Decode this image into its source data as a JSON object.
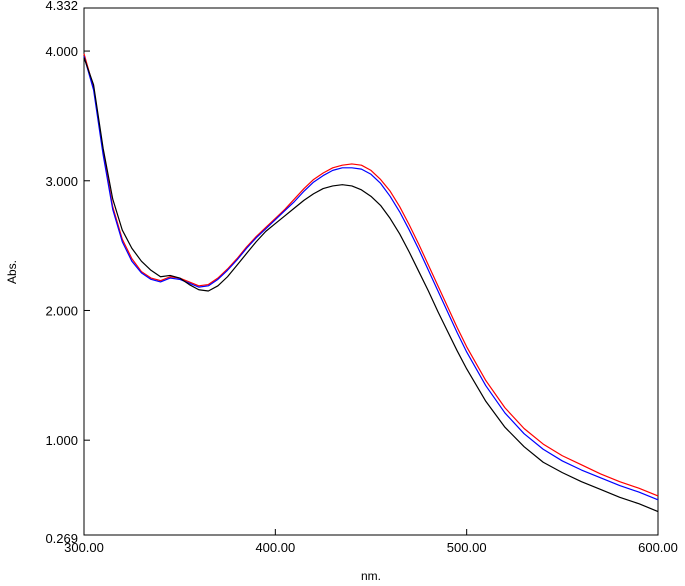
{
  "chart_data": {
    "type": "line",
    "title": "",
    "xlabel": "nm.",
    "ylabel": "Abs.",
    "xlim": [
      300.0,
      600.0
    ],
    "ylim": [
      0.269,
      4.332
    ],
    "grid": false,
    "legend": "none",
    "x_ticks": [
      {
        "value": 300,
        "label": "300.00"
      },
      {
        "value": 400,
        "label": "400.00"
      },
      {
        "value": 500,
        "label": "500.00"
      },
      {
        "value": 600,
        "label": "600.00"
      }
    ],
    "y_ticks": [
      {
        "value": 4.332,
        "label": "4.332"
      },
      {
        "value": 4.0,
        "label": "4.000"
      },
      {
        "value": 3.0,
        "label": "3.000"
      },
      {
        "value": 2.0,
        "label": "2.000"
      },
      {
        "value": 1.0,
        "label": "1.000"
      },
      {
        "value": 0.269,
        "label": "0.269"
      }
    ],
    "series": [
      {
        "color": "#ff0000",
        "points": [
          [
            300,
            3.98
          ],
          [
            305,
            3.72
          ],
          [
            310,
            3.22
          ],
          [
            315,
            2.8
          ],
          [
            320,
            2.55
          ],
          [
            325,
            2.4
          ],
          [
            330,
            2.3
          ],
          [
            335,
            2.25
          ],
          [
            340,
            2.23
          ],
          [
            345,
            2.26
          ],
          [
            350,
            2.25
          ],
          [
            355,
            2.22
          ],
          [
            360,
            2.19
          ],
          [
            365,
            2.2
          ],
          [
            370,
            2.25
          ],
          [
            375,
            2.32
          ],
          [
            380,
            2.4
          ],
          [
            385,
            2.49
          ],
          [
            390,
            2.57
          ],
          [
            395,
            2.64
          ],
          [
            400,
            2.71
          ],
          [
            405,
            2.78
          ],
          [
            410,
            2.86
          ],
          [
            415,
            2.94
          ],
          [
            420,
            3.01
          ],
          [
            425,
            3.06
          ],
          [
            430,
            3.1
          ],
          [
            435,
            3.12
          ],
          [
            440,
            3.13
          ],
          [
            445,
            3.12
          ],
          [
            450,
            3.08
          ],
          [
            455,
            3.01
          ],
          [
            460,
            2.92
          ],
          [
            465,
            2.8
          ],
          [
            470,
            2.66
          ],
          [
            475,
            2.51
          ],
          [
            480,
            2.35
          ],
          [
            485,
            2.19
          ],
          [
            490,
            2.03
          ],
          [
            495,
            1.87
          ],
          [
            500,
            1.72
          ],
          [
            510,
            1.46
          ],
          [
            520,
            1.25
          ],
          [
            530,
            1.09
          ],
          [
            540,
            0.97
          ],
          [
            550,
            0.88
          ],
          [
            560,
            0.81
          ],
          [
            570,
            0.74
          ],
          [
            580,
            0.68
          ],
          [
            590,
            0.63
          ],
          [
            600,
            0.57
          ]
        ]
      },
      {
        "color": "#0000ff",
        "points": [
          [
            300,
            3.96
          ],
          [
            305,
            3.7
          ],
          [
            310,
            3.2
          ],
          [
            315,
            2.78
          ],
          [
            320,
            2.53
          ],
          [
            325,
            2.38
          ],
          [
            330,
            2.29
          ],
          [
            335,
            2.24
          ],
          [
            340,
            2.22
          ],
          [
            345,
            2.25
          ],
          [
            350,
            2.24
          ],
          [
            355,
            2.21
          ],
          [
            360,
            2.18
          ],
          [
            365,
            2.19
          ],
          [
            370,
            2.24
          ],
          [
            375,
            2.31
          ],
          [
            380,
            2.39
          ],
          [
            385,
            2.48
          ],
          [
            390,
            2.56
          ],
          [
            395,
            2.63
          ],
          [
            400,
            2.7
          ],
          [
            405,
            2.77
          ],
          [
            410,
            2.84
          ],
          [
            415,
            2.92
          ],
          [
            420,
            2.99
          ],
          [
            425,
            3.04
          ],
          [
            430,
            3.08
          ],
          [
            435,
            3.1
          ],
          [
            440,
            3.1
          ],
          [
            445,
            3.09
          ],
          [
            450,
            3.05
          ],
          [
            455,
            2.98
          ],
          [
            460,
            2.88
          ],
          [
            465,
            2.76
          ],
          [
            470,
            2.62
          ],
          [
            475,
            2.47
          ],
          [
            480,
            2.31
          ],
          [
            485,
            2.15
          ],
          [
            490,
            1.99
          ],
          [
            495,
            1.83
          ],
          [
            500,
            1.68
          ],
          [
            510,
            1.42
          ],
          [
            520,
            1.21
          ],
          [
            530,
            1.05
          ],
          [
            540,
            0.93
          ],
          [
            550,
            0.84
          ],
          [
            560,
            0.77
          ],
          [
            570,
            0.71
          ],
          [
            580,
            0.65
          ],
          [
            590,
            0.6
          ],
          [
            600,
            0.54
          ]
        ]
      },
      {
        "color": "#000000",
        "points": [
          [
            300,
            3.95
          ],
          [
            305,
            3.74
          ],
          [
            310,
            3.25
          ],
          [
            315,
            2.86
          ],
          [
            320,
            2.62
          ],
          [
            325,
            2.48
          ],
          [
            330,
            2.38
          ],
          [
            335,
            2.31
          ],
          [
            340,
            2.26
          ],
          [
            345,
            2.27
          ],
          [
            350,
            2.25
          ],
          [
            355,
            2.2
          ],
          [
            360,
            2.16
          ],
          [
            365,
            2.15
          ],
          [
            370,
            2.19
          ],
          [
            375,
            2.26
          ],
          [
            380,
            2.35
          ],
          [
            385,
            2.44
          ],
          [
            390,
            2.53
          ],
          [
            395,
            2.61
          ],
          [
            400,
            2.67
          ],
          [
            405,
            2.73
          ],
          [
            410,
            2.79
          ],
          [
            415,
            2.85
          ],
          [
            420,
            2.9
          ],
          [
            425,
            2.94
          ],
          [
            430,
            2.96
          ],
          [
            435,
            2.97
          ],
          [
            440,
            2.96
          ],
          [
            445,
            2.93
          ],
          [
            450,
            2.88
          ],
          [
            455,
            2.81
          ],
          [
            460,
            2.71
          ],
          [
            465,
            2.59
          ],
          [
            470,
            2.45
          ],
          [
            475,
            2.3
          ],
          [
            480,
            2.15
          ],
          [
            485,
            1.99
          ],
          [
            490,
            1.84
          ],
          [
            495,
            1.69
          ],
          [
            500,
            1.55
          ],
          [
            510,
            1.3
          ],
          [
            520,
            1.1
          ],
          [
            530,
            0.95
          ],
          [
            540,
            0.83
          ],
          [
            550,
            0.75
          ],
          [
            560,
            0.68
          ],
          [
            570,
            0.62
          ],
          [
            580,
            0.56
          ],
          [
            590,
            0.51
          ],
          [
            600,
            0.45
          ]
        ]
      }
    ]
  }
}
